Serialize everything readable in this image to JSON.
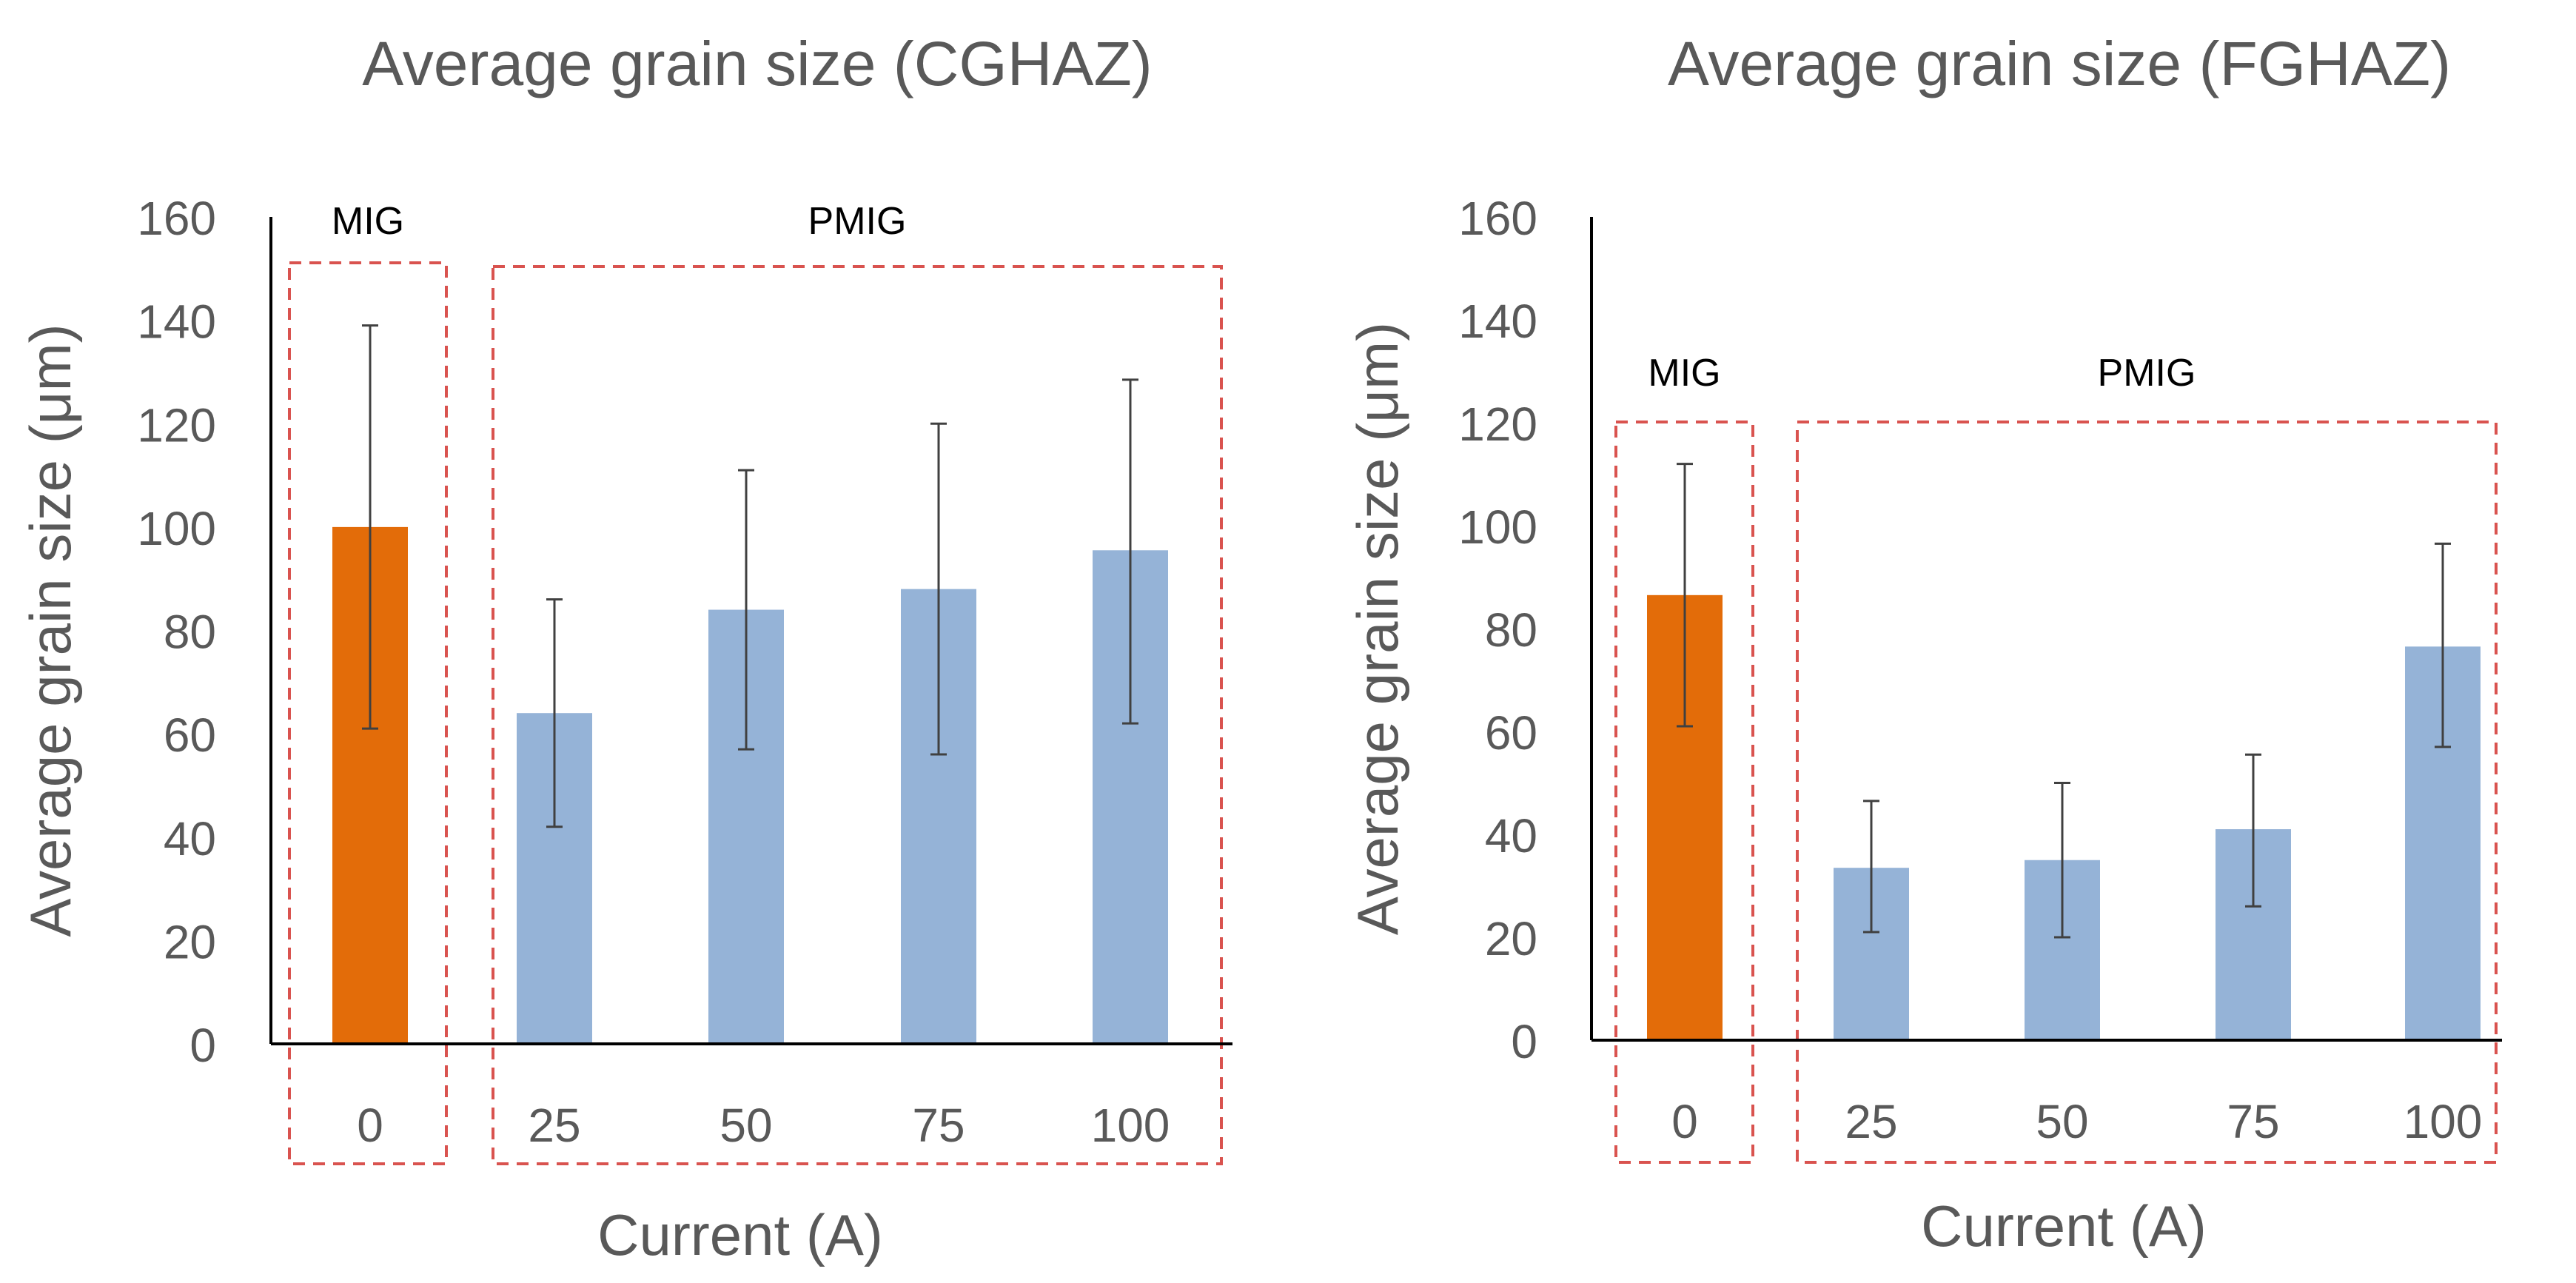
{
  "chart_data": [
    {
      "type": "bar",
      "title": "Average grain size (CGHAZ)",
      "xlabel": "Current (A)",
      "ylabel": "Average grain size (μm)",
      "ylim": [
        0,
        160
      ],
      "yticks": [
        "0",
        "20",
        "40",
        "60",
        "80",
        "100",
        "120",
        "140",
        "160"
      ],
      "categories": [
        "0",
        "25",
        "50",
        "75",
        "100"
      ],
      "values": [
        100,
        64,
        84,
        88,
        95.5
      ],
      "err_low": [
        61,
        42,
        57,
        56,
        62
      ],
      "err_high": [
        139,
        86,
        111,
        120,
        128.5
      ],
      "bar_colors": [
        "#e36c09",
        "#95b3d7",
        "#95b3d7",
        "#95b3d7",
        "#95b3d7"
      ],
      "groups": [
        {
          "label": "MIG",
          "from": 0,
          "to": 0
        },
        {
          "label": "PMIG",
          "from": 1,
          "to": 4
        }
      ],
      "grid": false
    },
    {
      "type": "bar",
      "title": "Average grain size (FGHAZ)",
      "xlabel": "Current (A)",
      "ylabel": "Average grain size (μm)",
      "ylim": [
        0,
        160
      ],
      "yticks": [
        "0",
        "20",
        "40",
        "60",
        "80",
        "100",
        "120",
        "140",
        "160"
      ],
      "categories": [
        "0",
        "25",
        "50",
        "75",
        "100"
      ],
      "values": [
        86.5,
        33.5,
        35,
        41,
        76.5
      ],
      "err_low": [
        61,
        21,
        20,
        26,
        57
      ],
      "err_high": [
        112,
        46.5,
        50,
        55.5,
        96.5
      ],
      "bar_colors": [
        "#e36c09",
        "#95b3d7",
        "#95b3d7",
        "#95b3d7",
        "#95b3d7"
      ],
      "groups": [
        {
          "label": "MIG",
          "from": 0,
          "to": 0
        },
        {
          "label": "PMIG",
          "from": 1,
          "to": 4
        }
      ],
      "grid": false
    }
  ]
}
